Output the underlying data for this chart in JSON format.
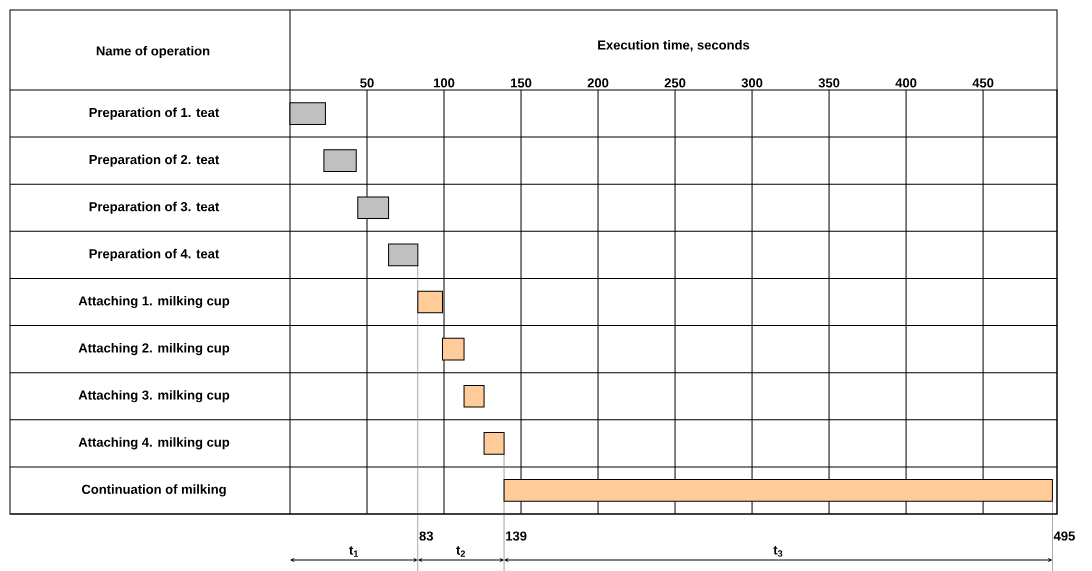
{
  "chart_data": {
    "type": "bar",
    "orientation": "horizontal",
    "xlabel": "Execution time, seconds",
    "ylabel": "Name of operation",
    "categories": [
      "Preparation of 1. teat",
      "Preparation of 2. teat",
      "Preparation of 3. teat",
      "Preparation of 4. teat",
      "Attaching 1. milking cup",
      "Attaching 2. milking cup",
      "Attaching 3. milking cup",
      "Attaching 4. milking cup",
      "Continuation of milking"
    ],
    "base": [
      0,
      22,
      44,
      64,
      83,
      99,
      113,
      126,
      139
    ],
    "values": [
      23,
      21,
      20,
      19,
      16,
      14,
      13,
      13,
      356
    ],
    "colors": [
      "#c0c0c0",
      "#c0c0c0",
      "#c0c0c0",
      "#c0c0c0",
      "#ffcc99",
      "#ffcc99",
      "#ffcc99",
      "#ffcc99",
      "#ffcc99"
    ],
    "xlim": [
      0,
      498
    ],
    "xticks": [
      50,
      100,
      150,
      200,
      250,
      300,
      350,
      400,
      450
    ],
    "grid": true,
    "ref_lines": [
      {
        "axis": "x",
        "value": 83,
        "label": "83",
        "color": "#808080"
      },
      {
        "axis": "x",
        "value": 139,
        "label": "139",
        "color": "#808080"
      },
      {
        "axis": "x",
        "value": 495,
        "label": "495",
        "color": "#808080"
      }
    ],
    "annotations": [
      "t$_{1}$",
      "t$_{2}$",
      "t$_{3}$"
    ]
  }
}
